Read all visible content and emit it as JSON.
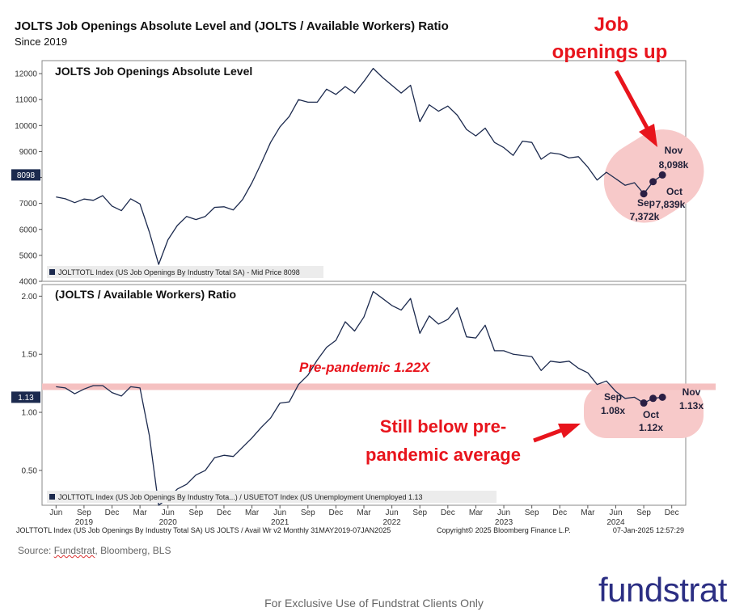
{
  "header": {
    "title": "JOLTS Job Openings Absolute Level and (JOLTS / Available Workers) Ratio",
    "subtitle": "Since 2019"
  },
  "chart_data": [
    {
      "type": "line",
      "title": "JOLTS Job Openings Absolute Level",
      "ylim": [
        4000,
        12500
      ],
      "yticks": [
        "12000",
        "11000",
        "10000",
        "9000",
        "8000",
        "7000",
        "6000",
        "5000",
        "4000"
      ],
      "y_tick_values": [
        12000,
        11000,
        10000,
        9000,
        8000,
        7000,
        6000,
        5000,
        4000
      ],
      "last_value_label": "8098",
      "legend": "JOLTTOTL Index (US Job Openings By Industry Total SA) - Mid Price 8098",
      "series": [
        {
          "values": [
            7250,
            7180,
            7030,
            7170,
            7120,
            7300,
            6900,
            6720,
            7180,
            6980,
            5900,
            4650,
            5600,
            6150,
            6500,
            6380,
            6500,
            6850,
            6870,
            6750,
            7150,
            7800,
            8550,
            9350,
            9950,
            10350,
            11000,
            10900,
            10900,
            11400,
            11200,
            11500,
            11250,
            11700,
            12200,
            11850,
            11550,
            11250,
            11550,
            10150,
            10800,
            10550,
            10750,
            10400,
            9850,
            9600,
            9900,
            9350,
            9150,
            8850,
            9400,
            9350,
            8700,
            8950,
            8900,
            8750,
            8800,
            8400,
            7900,
            8200,
            7950,
            7700,
            7800,
            7372,
            7839,
            8098
          ]
        }
      ],
      "x_start": "2019-05",
      "x_end": "2024-11",
      "highlight_points": [
        {
          "month": "Sep",
          "label": "7,372k",
          "value": 7372
        },
        {
          "month": "Oct",
          "label": "7,839k",
          "value": 7839
        },
        {
          "month": "Nov",
          "label": "8,098k",
          "value": 8098
        }
      ],
      "annotation": [
        "Job",
        "openings up"
      ],
      "color": "#1c2a4e"
    },
    {
      "type": "line",
      "title": "(JOLTS / Available Workers) Ratio",
      "ylim": [
        0.2,
        2.1
      ],
      "yticks": [
        "2.00",
        "1.50",
        "1.00",
        "0.50"
      ],
      "y_tick_values": [
        2.0,
        1.5,
        1.0,
        0.5
      ],
      "last_value_label": "1.13",
      "legend": "JOLTTOTL Index (US Job Openings By Industry Tota...) / USUETOT Index (US Unemployment Unemployed 1.13",
      "reference_line": {
        "value": 1.22,
        "label": "Pre-pandemic 1.22X"
      },
      "series": [
        {
          "values": [
            1.22,
            1.21,
            1.16,
            1.2,
            1.23,
            1.23,
            1.17,
            1.14,
            1.22,
            1.21,
            0.8,
            0.2,
            0.26,
            0.34,
            0.38,
            0.46,
            0.5,
            0.61,
            0.63,
            0.62,
            0.7,
            0.78,
            0.87,
            0.95,
            1.08,
            1.09,
            1.24,
            1.32,
            1.45,
            1.56,
            1.62,
            1.78,
            1.7,
            1.82,
            2.04,
            1.98,
            1.92,
            1.88,
            1.98,
            1.68,
            1.83,
            1.76,
            1.8,
            1.9,
            1.65,
            1.64,
            1.75,
            1.53,
            1.53,
            1.5,
            1.49,
            1.48,
            1.36,
            1.44,
            1.43,
            1.44,
            1.38,
            1.34,
            1.24,
            1.27,
            1.18,
            1.12,
            1.13,
            1.08,
            1.12,
            1.13
          ]
        }
      ],
      "highlight_points": [
        {
          "month": "Sep",
          "label": "1.08x",
          "value": 1.08
        },
        {
          "month": "Oct",
          "label": "1.12x",
          "value": 1.12
        },
        {
          "month": "Nov",
          "label": "1.13x",
          "value": 1.13
        }
      ],
      "annotation": [
        "Still below pre-",
        "pandemic average"
      ],
      "color": "#1c2a4e"
    }
  ],
  "x_axis": {
    "month_labels": [
      "Jun",
      "Sep",
      "Dec",
      "Mar",
      "Jun",
      "Sep",
      "Dec",
      "Mar",
      "Jun",
      "Sep",
      "Dec",
      "Mar",
      "Jun",
      "Sep",
      "Dec",
      "Mar",
      "Jun",
      "Sep",
      "Dec",
      "Mar",
      "Jun",
      "Sep",
      "Dec"
    ],
    "month_index": [
      1,
      4,
      7,
      10,
      13,
      16,
      19,
      22,
      25,
      28,
      31,
      34,
      37,
      40,
      43,
      46,
      49,
      52,
      55,
      58,
      61,
      64,
      67
    ],
    "year_labels": [
      "2019",
      "2020",
      "2021",
      "2022",
      "2023",
      "2024"
    ],
    "year_index": [
      4,
      13,
      25,
      37,
      49,
      61
    ]
  },
  "footer": {
    "left": "JOLTTOTL Index (US Job Openings By Industry Total SA) US JOLTS / Avail Wr v2  Monthly 31MAY2019-07JAN2025",
    "middle": "Copyright© 2025 Bloomberg Finance L.P.",
    "right": "07-Jan-2025 12:57:29"
  },
  "source": {
    "prefix": "Source: ",
    "underlined": "Fundstrat",
    "rest": ", Bloomberg, BLS"
  },
  "disclaimer": "For Exclusive Use of Fundstrat Clients Only",
  "brand": "fundstrat",
  "colors": {
    "line": "#1c2a4e",
    "accent_red": "#e8141c",
    "highlight_fill": "#f7c9c9",
    "brand": "#2b2e83"
  }
}
